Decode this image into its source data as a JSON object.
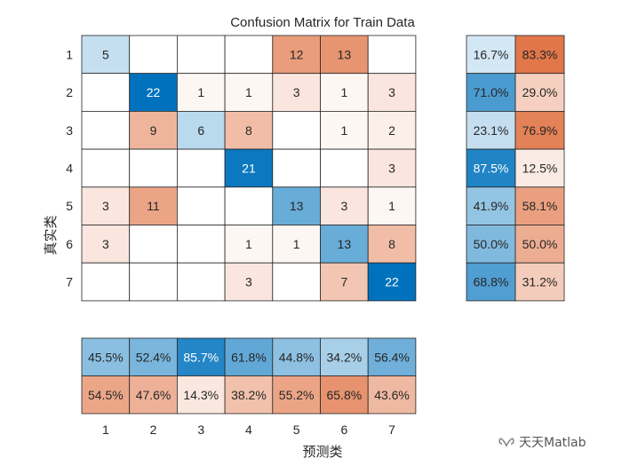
{
  "chart_data": {
    "type": "heatmap",
    "title": "Confusion Matrix for Train Data",
    "ylabel": "真实类",
    "xlabel": "预测类",
    "row_labels": [
      "1",
      "2",
      "3",
      "4",
      "5",
      "6",
      "7"
    ],
    "col_labels": [
      "1",
      "2",
      "3",
      "4",
      "5",
      "6",
      "7"
    ],
    "matrix": [
      [
        5,
        0,
        0,
        0,
        12,
        13,
        0
      ],
      [
        0,
        22,
        1,
        1,
        3,
        1,
        3
      ],
      [
        0,
        9,
        6,
        8,
        0,
        1,
        2
      ],
      [
        0,
        0,
        0,
        21,
        0,
        0,
        3
      ],
      [
        3,
        11,
        0,
        0,
        13,
        3,
        1
      ],
      [
        3,
        0,
        0,
        1,
        1,
        13,
        8
      ],
      [
        0,
        0,
        0,
        3,
        0,
        7,
        22
      ]
    ],
    "row_summary": {
      "correct": [
        "16.7%",
        "71.0%",
        "23.1%",
        "87.5%",
        "41.9%",
        "50.0%",
        "68.8%"
      ],
      "incorrect": [
        "83.3%",
        "29.0%",
        "76.9%",
        "12.5%",
        "58.1%",
        "50.0%",
        "31.2%"
      ]
    },
    "col_summary": {
      "correct": [
        "45.5%",
        "52.4%",
        "85.7%",
        "61.8%",
        "44.8%",
        "34.2%",
        "56.4%"
      ],
      "incorrect": [
        "54.5%",
        "47.6%",
        "14.3%",
        "38.2%",
        "55.2%",
        "65.8%",
        "43.6%"
      ]
    },
    "colors": {
      "diag_max": "#0072bd",
      "offdiag_max": "#d95319",
      "background": "#ffffff",
      "grid": "#262626"
    }
  },
  "watermark": {
    "text": "天天Matlab",
    "icon": "wechat-channel-icon"
  }
}
